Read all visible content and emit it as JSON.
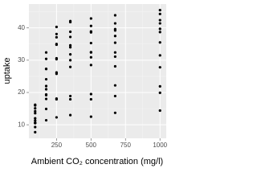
{
  "chart_data": {
    "type": "scatter",
    "x_label": "Ambient CO₂ concentration (mg/l)",
    "y_label": "uptake",
    "x": [
      95,
      175,
      250,
      350,
      500,
      675,
      1000,
      95,
      175,
      250,
      350,
      500,
      675,
      1000,
      95,
      175,
      250,
      350,
      500,
      675,
      1000,
      95,
      175,
      250,
      350,
      500,
      675,
      1000,
      95,
      175,
      250,
      350,
      500,
      675,
      1000,
      95,
      175,
      250,
      350,
      500,
      675,
      1000,
      95,
      175,
      250,
      350,
      500,
      675,
      1000,
      95,
      175,
      250,
      350,
      500,
      675,
      1000,
      95,
      175,
      250,
      350,
      500,
      675,
      1000,
      95,
      175,
      250,
      350,
      500,
      675,
      1000,
      95,
      175,
      250,
      350,
      500,
      675,
      1000,
      95,
      175,
      250,
      350,
      500,
      675,
      1000
    ],
    "values": [
      16.0,
      30.4,
      34.8,
      37.2,
      35.3,
      39.2,
      39.7,
      13.6,
      27.3,
      37.1,
      41.8,
      40.6,
      41.4,
      44.3,
      16.2,
      32.4,
      40.3,
      42.1,
      42.9,
      43.9,
      45.5,
      14.2,
      24.1,
      30.3,
      34.6,
      32.5,
      35.4,
      38.7,
      15.1,
      21.0,
      38.1,
      34.0,
      38.9,
      39.6,
      41.4,
      9.3,
      27.3,
      35.0,
      38.8,
      38.6,
      37.5,
      42.4,
      11.3,
      19.4,
      25.8,
      27.9,
      28.5,
      28.1,
      27.8,
      12.0,
      22.0,
      30.6,
      31.8,
      32.4,
      31.1,
      31.5,
      10.6,
      19.2,
      26.2,
      30.0,
      30.9,
      32.4,
      35.5,
      7.7,
      11.4,
      12.3,
      13.0,
      12.5,
      13.7,
      14.4,
      10.6,
      18.0,
      17.9,
      17.9,
      17.9,
      18.9,
      19.9,
      10.5,
      14.9,
      18.1,
      18.9,
      19.5,
      22.2,
      21.9
    ],
    "color": "#000000",
    "xlim": [
      49.75,
      1045.25
    ],
    "xticks": [
      250,
      500,
      750,
      1000
    ],
    "x_minor_ticks": [
      125,
      375,
      625,
      875
    ],
    "ylim": [
      5.81,
      47.39
    ],
    "yticks": [
      10,
      20,
      30,
      40
    ],
    "y_minor_ticks": [
      15,
      25,
      35,
      45
    ],
    "grid": true
  }
}
